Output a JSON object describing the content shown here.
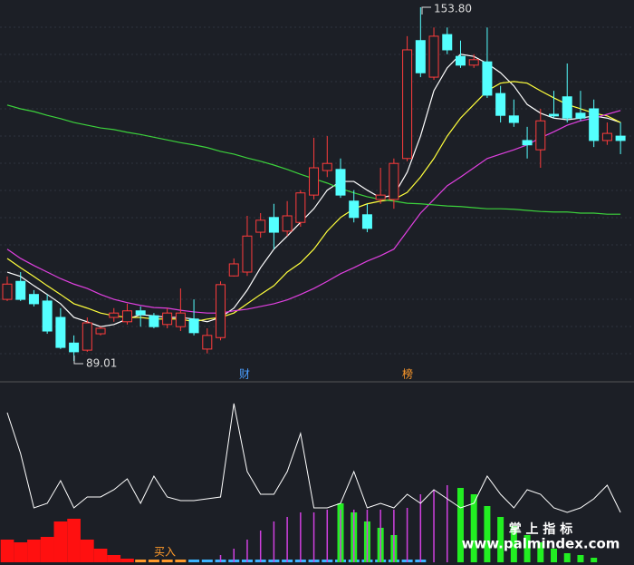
{
  "chart_data": [
    {
      "type": "candlestick",
      "ylim": [
        85.37,
        155.13
      ],
      "up_color": "#ff3c3c",
      "down_color": "#54ffff",
      "open": [
        100.3,
        103.6,
        101.2,
        100.0,
        97.0,
        92.3,
        91.0,
        94.0,
        97.0,
        96.2,
        98.2,
        97.3,
        95.7,
        95.3,
        96.7,
        91.2,
        93.3,
        104.6,
        105.3,
        112.6,
        115.3,
        112.8,
        114.4,
        119.4,
        123.9,
        124.1,
        118.3,
        115.8,
        118.6,
        118.6,
        126.1,
        147.7,
        141.0,
        148.8,
        144.8,
        143.2,
        143.8,
        138.0,
        133.9,
        129.4,
        127.7,
        134.2,
        137.4,
        134.4,
        135.2,
        129.4,
        130.2
      ],
      "high": [
        104.5,
        105.3,
        102.0,
        101.2,
        98.7,
        93.7,
        97.0,
        95.3,
        98.7,
        99.5,
        99.0,
        97.8,
        98.7,
        102.3,
        100.3,
        95.0,
        103.6,
        107.8,
        115.6,
        116.1,
        117.8,
        118.3,
        120.3,
        129.9,
        130.2,
        126.1,
        120.3,
        117.8,
        124.4,
        126.1,
        148.5,
        153.8,
        150.1,
        150.1,
        147.7,
        145.2,
        150.1,
        139.4,
        136.9,
        131.9,
        135.2,
        138.5,
        143.5,
        138.5,
        136.9,
        132.7,
        132.7
      ],
      "low": [
        100.0,
        100.0,
        99.0,
        94.0,
        91.2,
        89.01,
        90.7,
        93.7,
        96.2,
        95.7,
        95.3,
        95.0,
        95.0,
        94.5,
        93.7,
        90.4,
        92.8,
        104.5,
        104.6,
        111.6,
        109.5,
        111.9,
        113.6,
        118.6,
        122.7,
        118.9,
        114.4,
        112.6,
        117.8,
        116.9,
        125.6,
        141.0,
        140.5,
        145.2,
        142.7,
        142.7,
        137.2,
        132.7,
        131.9,
        126.1,
        124.4,
        133.5,
        132.7,
        133.0,
        128.2,
        128.6,
        126.9
      ],
      "close": [
        103.1,
        100.3,
        99.5,
        94.5,
        91.5,
        90.7,
        96.0,
        95.0,
        97.8,
        98.2,
        97.5,
        95.3,
        97.8,
        97.8,
        94.2,
        93.7,
        103.0,
        106.8,
        111.9,
        114.8,
        112.6,
        115.6,
        119.8,
        124.4,
        125.2,
        119.4,
        115.3,
        113.3,
        119.4,
        125.2,
        146.0,
        141.8,
        148.5,
        146.0,
        143.2,
        144.2,
        137.7,
        134.0,
        132.7,
        128.6,
        133.0,
        133.9,
        133.5,
        133.5,
        129.4,
        130.7,
        129.4
      ],
      "series": [
        {
          "color": "#ffffff",
          "values": [
            105.3,
            104.5,
            102.8,
            101.2,
            99.5,
            97.0,
            96.2,
            95.3,
            95.7,
            96.7,
            97.5,
            97.3,
            97.0,
            97.0,
            96.7,
            96.2,
            97.0,
            98.7,
            102.0,
            106.1,
            109.5,
            111.9,
            114.4,
            116.9,
            120.3,
            121.9,
            121.9,
            120.3,
            118.9,
            119.4,
            123.6,
            130.2,
            138.5,
            142.7,
            145.2,
            144.8,
            143.5,
            141.8,
            139.4,
            136.0,
            134.4,
            133.5,
            133.2,
            133.5,
            133.9,
            133.5,
            132.7
          ]
        },
        {
          "color": "#ffff3c",
          "values": [
            107.8,
            106.1,
            104.5,
            102.8,
            101.2,
            99.5,
            98.7,
            97.8,
            97.3,
            97.0,
            97.0,
            96.7,
            96.7,
            96.7,
            96.2,
            96.7,
            97.0,
            97.8,
            99.5,
            101.2,
            102.8,
            105.3,
            107.0,
            109.5,
            112.8,
            115.3,
            116.9,
            117.8,
            118.3,
            118.6,
            119.9,
            122.7,
            126.1,
            130.2,
            133.5,
            136.0,
            138.5,
            139.9,
            140.2,
            139.9,
            138.5,
            137.2,
            136.0,
            135.2,
            134.4,
            133.9,
            132.7
          ]
        },
        {
          "color": "#e040e0",
          "values": [
            109.5,
            107.8,
            106.5,
            105.3,
            104.1,
            103.1,
            102.3,
            101.2,
            100.3,
            99.7,
            99.2,
            98.8,
            98.7,
            98.3,
            98.0,
            97.8,
            97.8,
            98.2,
            98.5,
            99.0,
            99.5,
            100.2,
            101.2,
            102.3,
            103.6,
            105.0,
            106.1,
            107.3,
            108.3,
            109.5,
            112.8,
            116.1,
            118.6,
            121.1,
            122.7,
            124.4,
            126.1,
            126.9,
            127.7,
            128.6,
            129.9,
            131.0,
            132.2,
            133.0,
            133.5,
            134.2,
            134.9
          ]
        },
        {
          "color": "#3cd23c",
          "values": [
            135.9,
            135.2,
            134.7,
            134.0,
            133.4,
            132.7,
            132.2,
            131.7,
            131.4,
            130.9,
            130.5,
            130.0,
            129.5,
            129.0,
            128.6,
            128.1,
            127.4,
            126.9,
            126.2,
            125.6,
            124.9,
            124.1,
            123.2,
            122.4,
            121.6,
            120.6,
            119.8,
            119.1,
            118.6,
            118.3,
            117.9,
            117.8,
            117.6,
            117.4,
            117.3,
            117.1,
            116.9,
            116.9,
            116.8,
            116.6,
            116.4,
            116.3,
            116.3,
            116.1,
            116.1,
            115.9,
            115.9
          ]
        }
      ],
      "annotations": [
        "153.80",
        "89.01",
        "财",
        "榜"
      ]
    },
    {
      "type": "bar",
      "ylim": [
        0,
        195
      ],
      "line": {
        "color": "#ffffff",
        "values": [
          165,
          120,
          60,
          65,
          90,
          60,
          72,
          72,
          80,
          92,
          65,
          95,
          72,
          68,
          68,
          70,
          72,
          175,
          100,
          75,
          75,
          100,
          142,
          60,
          60,
          65,
          100,
          60,
          65,
          60,
          75,
          65,
          80,
          70,
          60,
          65,
          95,
          75,
          60,
          80,
          75,
          60,
          55,
          60,
          70,
          85,
          55
        ]
      },
      "series": [
        {
          "color": "#ff1010",
          "values": [
            25,
            22,
            25,
            28,
            45,
            48,
            25,
            15,
            8,
            4,
            null,
            null,
            null,
            null,
            null,
            null,
            null,
            null,
            null,
            null,
            null,
            null,
            null,
            null,
            null,
            null,
            null,
            null,
            null,
            null,
            null,
            null,
            null,
            null,
            null,
            null,
            null,
            null,
            null,
            null,
            null,
            null,
            null,
            null,
            null,
            null,
            null
          ]
        },
        {
          "color": "#ff9a2a",
          "values": [
            null,
            null,
            null,
            null,
            null,
            null,
            null,
            null,
            null,
            null,
            3,
            3,
            3,
            3,
            null,
            null,
            null,
            null,
            null,
            null,
            null,
            null,
            null,
            null,
            null,
            null,
            null,
            null,
            null,
            null,
            null,
            null,
            null,
            null,
            null,
            null,
            null,
            null,
            null,
            null,
            null,
            null,
            null,
            null,
            null,
            null,
            null
          ]
        },
        {
          "color": "#3cb4ff",
          "values": [
            null,
            null,
            null,
            null,
            null,
            null,
            null,
            null,
            null,
            null,
            null,
            null,
            null,
            null,
            3,
            3,
            3,
            3,
            3,
            3,
            3,
            3,
            3,
            3,
            3,
            3,
            3,
            3,
            3,
            3,
            3,
            3,
            null,
            null,
            null,
            null,
            null,
            null,
            null,
            null,
            null,
            null,
            null,
            null,
            null,
            null,
            null
          ]
        },
        {
          "color": "#22ee22",
          "values": [
            null,
            null,
            null,
            null,
            null,
            null,
            null,
            null,
            null,
            null,
            null,
            null,
            null,
            null,
            null,
            null,
            null,
            null,
            null,
            null,
            null,
            null,
            null,
            null,
            null,
            65,
            55,
            45,
            38,
            30,
            null,
            null,
            null,
            null,
            82,
            75,
            62,
            50,
            40,
            30,
            22,
            15,
            10,
            8,
            5,
            null,
            null
          ]
        },
        {
          "color": "#d040e0",
          "values": [
            null,
            null,
            null,
            null,
            null,
            null,
            null,
            null,
            null,
            null,
            null,
            null,
            null,
            null,
            null,
            null,
            8,
            15,
            25,
            35,
            45,
            50,
            55,
            55,
            58,
            58,
            58,
            58,
            58,
            58,
            60,
            75,
            80,
            85,
            null,
            null,
            null,
            null,
            null,
            null,
            null,
            null,
            null,
            null,
            null,
            null,
            null
          ]
        }
      ],
      "annotations": [
        "买入"
      ]
    }
  ],
  "watermark": [
    "掌 上 指 标",
    "www.palmindex.com"
  ]
}
